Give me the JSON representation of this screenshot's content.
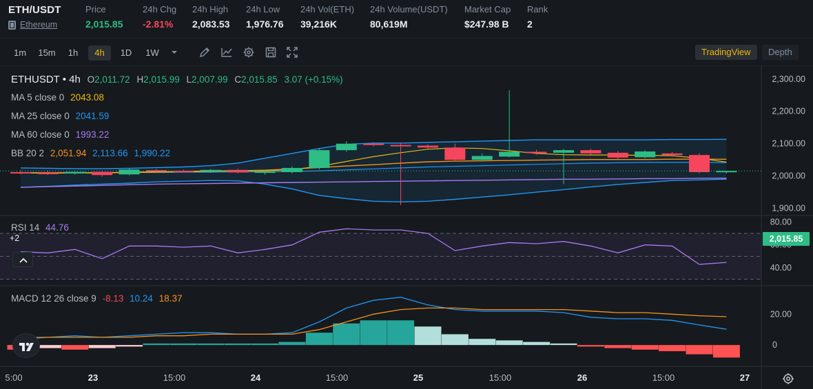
{
  "header": {
    "pair": "ETH/USDT",
    "asset_name": "Ethereum",
    "stats": [
      {
        "label": "Price",
        "value": "2,015.85",
        "tone": "green"
      },
      {
        "label": "24h Chg",
        "value": "-2.81%",
        "tone": "red"
      },
      {
        "label": "24h High",
        "value": "2,083.53",
        "tone": "white"
      },
      {
        "label": "24h Low",
        "value": "1,976.76",
        "tone": "white"
      },
      {
        "label": "24h Vol(ETH)",
        "value": "39,216K",
        "tone": "white"
      },
      {
        "label": "24h Volume(USDT)",
        "value": "80,619M",
        "tone": "white"
      },
      {
        "label": "Market Cap",
        "value": "$247.98 B",
        "tone": "white"
      },
      {
        "label": "Rank",
        "value": "2",
        "tone": "white"
      }
    ]
  },
  "toolbar": {
    "timeframes": [
      "1m",
      "15m",
      "1h",
      "4h",
      "1D",
      "1W"
    ],
    "active_timeframe": "4h",
    "tools": [
      "chevron-down-icon",
      "draw-icon",
      "indicator-icon",
      "settings-icon",
      "save-icon",
      "fullscreen-icon"
    ],
    "views": [
      "TradingView",
      "Depth"
    ],
    "active_view": "TradingView"
  },
  "colors": {
    "up": "#2ebd85",
    "down": "#f6465d",
    "ma5": "#f0b90b",
    "ma25": "#2196f3",
    "ma60": "#a77bf0",
    "bb_mid": "#f7931a",
    "bb_band": "#2196f3",
    "rsi": "#a77bf0",
    "macd_fast": "#2196f3",
    "macd_slow": "#f7931a"
  },
  "legend": {
    "ohlc": {
      "symbol": "ETHUSDT",
      "interval": "4h",
      "O": "2,011.72",
      "H": "2,015.99",
      "L": "2,007.99",
      "C": "2,015.85",
      "chg": "3.07 (+0.15%)"
    },
    "ma5": {
      "label": "MA 5 close 0",
      "value": "2043.08"
    },
    "ma25": {
      "label": "MA 25 close 0",
      "value": "2041.59"
    },
    "ma60": {
      "label": "MA 60 close 0",
      "value": "1993.22"
    },
    "bb": {
      "label": "BB 20 2",
      "mid": "2,051.94",
      "upper": "2,113.66",
      "lower": "1,990.22"
    },
    "rsi": {
      "label": "RSI 14",
      "value": "44.76"
    },
    "macd": {
      "label": "MACD 12 26 close 9",
      "hist": "-8.13",
      "macd": "10.24",
      "signal": "18.37"
    },
    "plus_badge": "+2"
  },
  "chart_data": [
    {
      "type": "candlestick",
      "title": "ETHUSDT • 4h",
      "ylim": [
        1880,
        2340
      ],
      "y_ticks": [
        "2,300.00",
        "2,200.00",
        "2,100.00",
        "2,000.00",
        "1,900.00"
      ],
      "y_tick_values": [
        2300,
        2200,
        2100,
        2000,
        1900
      ],
      "last_price": "2,015.85",
      "last_price_value": 2015.85,
      "x_labels": [
        "5:00",
        "23",
        "15:00",
        "24",
        "15:00",
        "25",
        "15:00",
        "26",
        "15:00",
        "27"
      ],
      "candles": [
        {
          "o": 2012,
          "h": 2018,
          "l": 2005,
          "c": 2010
        },
        {
          "o": 2010,
          "h": 2016,
          "l": 2003,
          "c": 2008
        },
        {
          "o": 2008,
          "h": 2014,
          "l": 2004,
          "c": 2013
        },
        {
          "o": 2013,
          "h": 2017,
          "l": 1998,
          "c": 2003
        },
        {
          "o": 2005,
          "h": 2023,
          "l": 2002,
          "c": 2020
        },
        {
          "o": 2018,
          "h": 2022,
          "l": 2012,
          "c": 2016
        },
        {
          "o": 2016,
          "h": 2020,
          "l": 2011,
          "c": 2014
        },
        {
          "o": 2014,
          "h": 2022,
          "l": 2010,
          "c": 2019
        },
        {
          "o": 2019,
          "h": 2023,
          "l": 2008,
          "c": 2011
        },
        {
          "o": 2011,
          "h": 2017,
          "l": 2004,
          "c": 2014
        },
        {
          "o": 2012,
          "h": 2030,
          "l": 2008,
          "c": 2025
        },
        {
          "o": 2025,
          "h": 2085,
          "l": 2020,
          "c": 2080
        },
        {
          "o": 2080,
          "h": 2108,
          "l": 2075,
          "c": 2100
        },
        {
          "o": 2100,
          "h": 2104,
          "l": 2092,
          "c": 2096
        },
        {
          "o": 2096,
          "h": 2103,
          "l": 1910,
          "c": 2094
        },
        {
          "o": 2094,
          "h": 2098,
          "l": 2085,
          "c": 2088
        },
        {
          "o": 2088,
          "h": 2100,
          "l": 2045,
          "c": 2050
        },
        {
          "o": 2050,
          "h": 2070,
          "l": 2045,
          "c": 2062
        },
        {
          "o": 2060,
          "h": 2265,
          "l": 2058,
          "c": 2075
        },
        {
          "o": 2075,
          "h": 2082,
          "l": 2066,
          "c": 2072
        },
        {
          "o": 2072,
          "h": 2084,
          "l": 1975,
          "c": 2080
        },
        {
          "o": 2080,
          "h": 2085,
          "l": 2066,
          "c": 2070
        },
        {
          "o": 2072,
          "h": 2078,
          "l": 2052,
          "c": 2057
        },
        {
          "o": 2058,
          "h": 2080,
          "l": 2054,
          "c": 2076
        },
        {
          "o": 2070,
          "h": 2074,
          "l": 2060,
          "c": 2065
        },
        {
          "o": 2065,
          "h": 2070,
          "l": 2008,
          "c": 2012
        },
        {
          "o": 2012,
          "h": 2016,
          "l": 2008,
          "c": 2015.85
        }
      ],
      "ma5": [
        2010,
        2009,
        2010,
        2010,
        2012,
        2013,
        2014,
        2016,
        2016,
        2016,
        2020,
        2030,
        2045,
        2060,
        2072,
        2083,
        2087,
        2085,
        2078,
        2070,
        2066,
        2065,
        2065,
        2064,
        2063,
        2055,
        2043
      ],
      "ma25": [
        2010,
        2010,
        2010,
        2010,
        2011,
        2011,
        2012,
        2012,
        2013,
        2013,
        2014,
        2016,
        2019,
        2022,
        2025,
        2028,
        2030,
        2032,
        2034,
        2036,
        2038,
        2040,
        2041,
        2042,
        2042,
        2042,
        2041.59
      ],
      "bb_upper": [
        2025,
        2024,
        2023,
        2023,
        2024,
        2026,
        2028,
        2032,
        2040,
        2055,
        2070,
        2085,
        2098,
        2102,
        2102,
        2104,
        2106,
        2108,
        2110,
        2112,
        2112,
        2112,
        2112,
        2112,
        2113,
        2113,
        2113.66
      ],
      "bb_mid": [
        2010,
        2010,
        2010,
        2010,
        2011,
        2012,
        2013,
        2014,
        2016,
        2018,
        2022,
        2026,
        2031,
        2035,
        2040,
        2044,
        2046,
        2047,
        2048,
        2049,
        2050,
        2051,
        2051,
        2051,
        2052,
        2052,
        2051.94
      ],
      "bb_lower": [
        1965,
        1968,
        1972,
        1975,
        1978,
        1982,
        1984,
        1986,
        1985,
        1975,
        1960,
        1940,
        1930,
        1922,
        1920,
        1922,
        1928,
        1935,
        1942,
        1950,
        1958,
        1966,
        1974,
        1980,
        1986,
        1988,
        1990.22
      ],
      "ma60": [
        1965,
        1967,
        1969,
        1971,
        1973,
        1975,
        1976,
        1977,
        1978,
        1979,
        1980,
        1981,
        1982,
        1983,
        1984,
        1985,
        1986,
        1987,
        1988,
        1989,
        1990,
        1990,
        1991,
        1992,
        1992,
        1993,
        1993.22
      ]
    },
    {
      "type": "line",
      "title": "RSI 14",
      "ylim": [
        25,
        85
      ],
      "y_ticks": [
        "80.00",
        "60.00",
        "40.00"
      ],
      "y_tick_values": [
        80,
        60,
        40
      ],
      "band": [
        30,
        70
      ],
      "values": [
        54,
        53,
        56,
        48,
        59,
        59,
        58,
        59,
        53,
        56,
        60,
        71,
        74,
        73,
        73,
        70,
        55,
        59,
        62,
        61,
        63,
        59,
        53,
        60,
        59,
        43,
        44.76
      ]
    },
    {
      "type": "bar",
      "title": "MACD 12 26 close 9",
      "ylim": [
        -12,
        38
      ],
      "y_ticks": [
        "20.00",
        "0"
      ],
      "y_tick_values": [
        20,
        0
      ],
      "histogram": [
        -3,
        -2,
        -3,
        -2,
        -1,
        1,
        1,
        1,
        1,
        1,
        2,
        8,
        14,
        16,
        16,
        12,
        7,
        4,
        3,
        2,
        1,
        -1,
        -2,
        -3,
        -4,
        -6,
        -8.13
      ],
      "macd": [
        5,
        5,
        6,
        5,
        6,
        7,
        8,
        8,
        7,
        7,
        8,
        15,
        24,
        29,
        31,
        26,
        23,
        22,
        22,
        22,
        21,
        18,
        17,
        17,
        16,
        13,
        10.24
      ],
      "signal": [
        4,
        5,
        5,
        5,
        5,
        6,
        6,
        7,
        7,
        7,
        7,
        10,
        15,
        20,
        23,
        24,
        24,
        23,
        23,
        23,
        23,
        22,
        21,
        21,
        20,
        19,
        18.37
      ]
    }
  ]
}
